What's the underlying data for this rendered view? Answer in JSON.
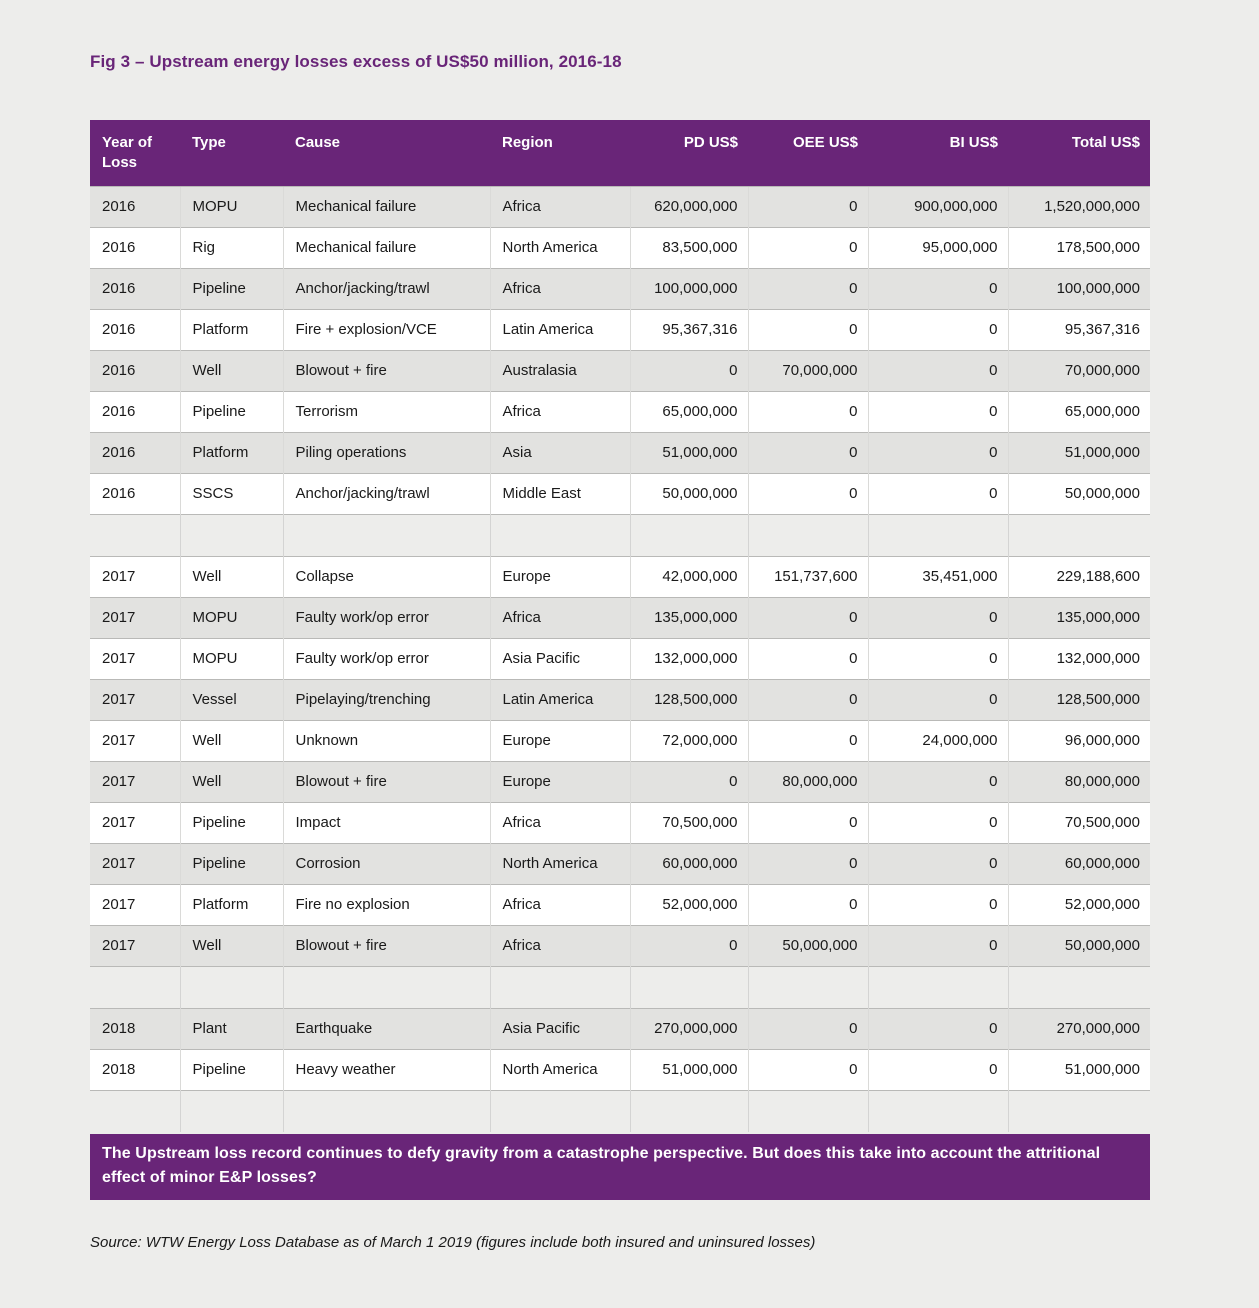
{
  "page": {
    "title": "Fig 3 – Upstream energy losses excess of US$50 million, 2016-18",
    "callout": "The Upstream loss record continues to defy gravity from a catastrophe perspective. But does this take into account the attritional effect of minor E&P losses?",
    "source": "Source: WTW Energy Loss Database as of March 1 2019 (figures include both insured and uninsured losses)"
  },
  "colors": {
    "brand_purple": "#692578",
    "row_shade_gray": "#E2E2E0",
    "row_shade_white": "#FFFFFF",
    "page_background": "#EDEDEB"
  },
  "table": {
    "columns": [
      {
        "key": "year",
        "label": "Year of Loss",
        "align": "left"
      },
      {
        "key": "type",
        "label": "Type",
        "align": "left"
      },
      {
        "key": "cause",
        "label": "Cause",
        "align": "left"
      },
      {
        "key": "region",
        "label": "Region",
        "align": "left"
      },
      {
        "key": "pd",
        "label": "PD US$",
        "align": "right"
      },
      {
        "key": "oee",
        "label": "OEE US$",
        "align": "right"
      },
      {
        "key": "bi",
        "label": "BI US$",
        "align": "right"
      },
      {
        "key": "total",
        "label": "Total US$",
        "align": "right"
      }
    ],
    "sections": [
      {
        "year_group": "2016",
        "first_shade": "gray",
        "rows": [
          [
            "2016",
            "MOPU",
            "Mechanical failure",
            "Africa",
            "620,000,000",
            "0",
            "900,000,000",
            "1,520,000,000"
          ],
          [
            "2016",
            "Rig",
            "Mechanical failure",
            "North America",
            "83,500,000",
            "0",
            "95,000,000",
            "178,500,000"
          ],
          [
            "2016",
            "Pipeline",
            "Anchor/jacking/trawl",
            "Africa",
            "100,000,000",
            "0",
            "0",
            "100,000,000"
          ],
          [
            "2016",
            "Platform",
            "Fire + explosion/VCE",
            "Latin America",
            "95,367,316",
            "0",
            "0",
            "95,367,316"
          ],
          [
            "2016",
            "Well",
            "Blowout + fire",
            "Australasia",
            "0",
            "70,000,000",
            "0",
            "70,000,000"
          ],
          [
            "2016",
            "Pipeline",
            "Terrorism",
            "Africa",
            "65,000,000",
            "0",
            "0",
            "65,000,000"
          ],
          [
            "2016",
            "Platform",
            "Piling operations",
            "Asia",
            "51,000,000",
            "0",
            "0",
            "51,000,000"
          ],
          [
            "2016",
            "SSCS",
            "Anchor/jacking/trawl",
            "Middle East",
            "50,000,000",
            "0",
            "0",
            "50,000,000"
          ]
        ]
      },
      {
        "year_group": "2017",
        "first_shade": "white",
        "rows": [
          [
            "2017",
            "Well",
            "Collapse",
            "Europe",
            "42,000,000",
            "151,737,600",
            "35,451,000",
            "229,188,600"
          ],
          [
            "2017",
            "MOPU",
            "Faulty work/op error",
            "Africa",
            "135,000,000",
            "0",
            "0",
            "135,000,000"
          ],
          [
            "2017",
            "MOPU",
            "Faulty work/op error",
            "Asia Pacific",
            "132,000,000",
            "0",
            "0",
            "132,000,000"
          ],
          [
            "2017",
            "Vessel",
            "Pipelaying/trenching",
            "Latin America",
            "128,500,000",
            "0",
            "0",
            "128,500,000"
          ],
          [
            "2017",
            "Well",
            "Unknown",
            "Europe",
            "72,000,000",
            "0",
            "24,000,000",
            "96,000,000"
          ],
          [
            "2017",
            "Well",
            "Blowout + fire",
            "Europe",
            "0",
            "80,000,000",
            "0",
            "80,000,000"
          ],
          [
            "2017",
            "Pipeline",
            "Impact",
            "Africa",
            "70,500,000",
            "0",
            "0",
            "70,500,000"
          ],
          [
            "2017",
            "Pipeline",
            "Corrosion",
            "North America",
            "60,000,000",
            "0",
            "0",
            "60,000,000"
          ],
          [
            "2017",
            "Platform",
            "Fire no explosion",
            "Africa",
            "52,000,000",
            "0",
            "0",
            "52,000,000"
          ],
          [
            "2017",
            "Well",
            "Blowout + fire",
            "Africa",
            "0",
            "50,000,000",
            "0",
            "50,000,000"
          ]
        ]
      },
      {
        "year_group": "2018",
        "first_shade": "gray",
        "rows": [
          [
            "2018",
            "Plant",
            "Earthquake",
            "Asia Pacific",
            "270,000,000",
            "0",
            "0",
            "270,000,000"
          ],
          [
            "2018",
            "Pipeline",
            "Heavy weather",
            "North America",
            "51,000,000",
            "0",
            "0",
            "51,000,000"
          ]
        ]
      }
    ]
  }
}
